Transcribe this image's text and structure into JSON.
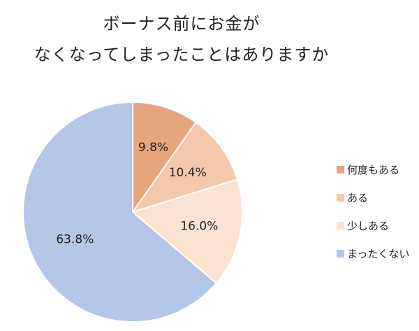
{
  "chart_data": {
    "type": "pie",
    "title_lines": [
      "ボーナス前にお金が",
      "なくなってしまったことはありますか"
    ],
    "labels": [
      "何度もある",
      "ある",
      "少しある",
      "まったくない"
    ],
    "values": [
      9.8,
      10.4,
      16.0,
      63.8
    ],
    "value_labels": [
      "9.8%",
      "10.4%",
      "16.0%",
      "63.8%"
    ],
    "colors": [
      "#e8a57d",
      "#f4c8aa",
      "#fbe3d4",
      "#b4c6e7"
    ],
    "legend_position": "right"
  }
}
